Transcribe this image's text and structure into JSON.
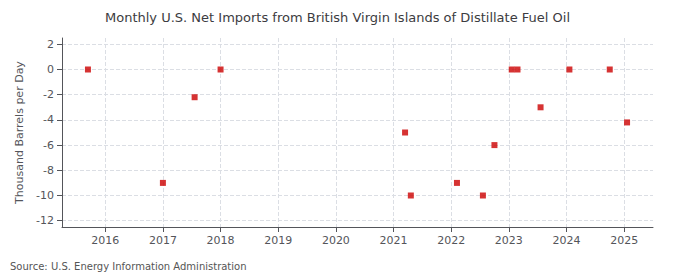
{
  "chart_data": {
    "type": "scatter",
    "title": "Monthly U.S. Net Imports from British Virgin Islands of Distillate Fuel Oil",
    "ylabel": "Thousand Barrels per Day",
    "annotation": "Source: U.S. Energy Information Administration",
    "x": [
      2015.7,
      2017.0,
      2017.55,
      2018.0,
      2021.2,
      2021.3,
      2022.1,
      2022.55,
      2022.75,
      2023.05,
      2023.15,
      2023.55,
      2024.05,
      2024.75,
      2025.05
    ],
    "values": [
      0,
      -9,
      -2.2,
      0,
      -5,
      -10,
      -9,
      -10,
      -6,
      0,
      0,
      -3,
      0,
      0,
      -4.2
    ],
    "color": "#cc0000",
    "marker": "square",
    "xlim": [
      2015.25,
      2025.5
    ],
    "ylim": [
      -12.5,
      2.5
    ],
    "xticks": [
      2016,
      2017,
      2018,
      2019,
      2020,
      2021,
      2022,
      2023,
      2024,
      2025
    ],
    "yticks": [
      2,
      0,
      -2,
      -4,
      -6,
      -8,
      -10,
      -12
    ],
    "grid": true
  }
}
